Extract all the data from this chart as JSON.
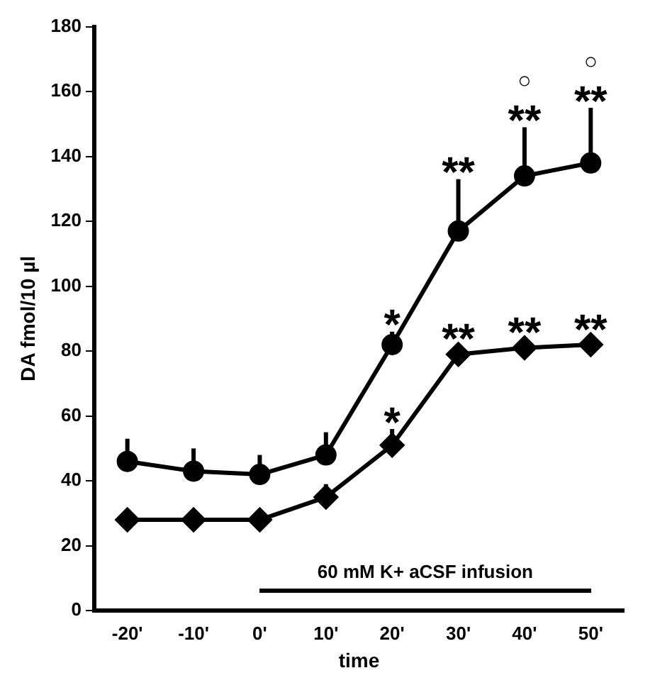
{
  "chart_data": {
    "type": "line",
    "xlabel": "time",
    "ylabel": "DA fmol/10 µl",
    "categories": [
      "-20'",
      "-10'",
      "0'",
      "10'",
      "20'",
      "30'",
      "40'",
      "50'"
    ],
    "series": [
      {
        "color": "#000000",
        "marker": "circle",
        "values": [
          46,
          43,
          42,
          48,
          82,
          117,
          134,
          138
        ],
        "errors": [
          [
            46,
            53
          ],
          [
            43,
            50
          ],
          [
            42,
            48
          ],
          [
            48,
            55
          ],
          [
            82,
            86
          ],
          [
            117,
            133
          ],
          [
            134,
            149
          ],
          [
            138,
            155
          ]
        ]
      },
      {
        "color": "#000000",
        "marker": "diamond",
        "values": [
          28,
          28,
          28,
          35,
          51,
          79,
          81,
          82
        ],
        "errors": [
          null,
          null,
          null,
          [
            35,
            39
          ],
          [
            51,
            56
          ],
          null,
          null,
          null
        ]
      }
    ],
    "ylim": [
      0,
      180
    ],
    "yticks": [
      0,
      20,
      40,
      60,
      80,
      100,
      120,
      140,
      160,
      180
    ],
    "grid": false,
    "legend": false,
    "annotations": [
      "60 mM K+ aCSF infusion",
      {
        "text": "*",
        "x": "20'",
        "y": 82
      },
      {
        "text": "*",
        "x": "20'",
        "y": 51
      },
      {
        "text": "**",
        "x": "30'",
        "y": 117
      },
      {
        "text": "**",
        "x": "30'",
        "y": 79
      },
      {
        "text": "**",
        "x": "40'",
        "y": 134
      },
      {
        "text": "**",
        "x": "40'",
        "y": 81
      },
      {
        "text": "**",
        "x": "50'",
        "y": 138
      },
      {
        "text": "**",
        "x": "50'",
        "y": 82
      },
      "○",
      "○"
    ]
  }
}
